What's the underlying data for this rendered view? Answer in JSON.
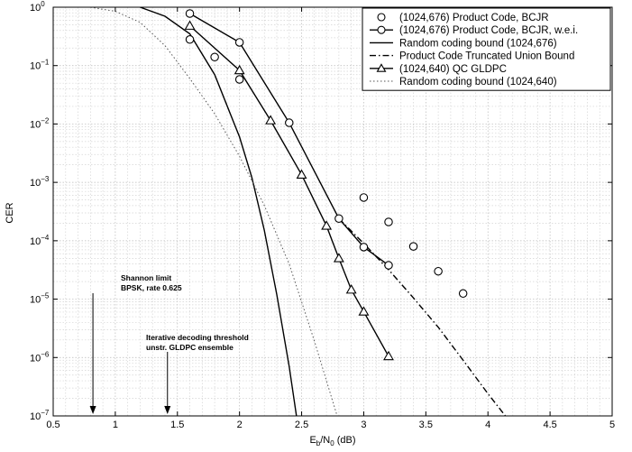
{
  "chart_data": {
    "type": "line",
    "xlabel": {
      "main": "E",
      "sub1": "b",
      "mid": "/N",
      "sub2": "0",
      "unit": " (dB)"
    },
    "ylabel": "CER",
    "xlim": [
      0.5,
      5
    ],
    "ylim_log10": [
      -7,
      0
    ],
    "yscale": "log",
    "grid": true,
    "legend_position": "top-right",
    "xticks": [
      {
        "v": 0.5,
        "label": "0.5"
      },
      {
        "v": 1,
        "label": "1"
      },
      {
        "v": 1.5,
        "label": "1.5"
      },
      {
        "v": 2,
        "label": "2"
      },
      {
        "v": 2.5,
        "label": "2.5"
      },
      {
        "v": 3,
        "label": "3"
      },
      {
        "v": 3.5,
        "label": "3.5"
      },
      {
        "v": 4,
        "label": "4"
      },
      {
        "v": 4.5,
        "label": "4.5"
      },
      {
        "v": 5,
        "label": "5"
      }
    ],
    "yticks": [
      {
        "e": 0,
        "base": "10",
        "exp": "0"
      },
      {
        "e": -1,
        "base": "10",
        "exp": "−1"
      },
      {
        "e": -2,
        "base": "10",
        "exp": "−2"
      },
      {
        "e": -3,
        "base": "10",
        "exp": "−3"
      },
      {
        "e": -4,
        "base": "10",
        "exp": "−4"
      },
      {
        "e": -5,
        "base": "10",
        "exp": "−5"
      },
      {
        "e": -6,
        "base": "10",
        "exp": "−6"
      },
      {
        "e": -7,
        "base": "10",
        "exp": "−7"
      }
    ],
    "series": [
      {
        "name": "(1024,676) Product Code, BCJR",
        "style": "circle-markers",
        "x": [
          1.6,
          1.8,
          2.0,
          3.0,
          3.2,
          3.4,
          3.6,
          3.8
        ],
        "y": [
          0.28,
          0.14,
          0.058,
          0.00055,
          0.00021,
          8e-05,
          3e-05,
          1.25e-05
        ]
      },
      {
        "name": "(1024,676) Product Code, BCJR, w.e.i.",
        "style": "solid-circle",
        "x": [
          1.6,
          2.0,
          2.4,
          2.8,
          3.0,
          3.2
        ],
        "y": [
          0.78,
          0.25,
          0.0105,
          0.00024,
          7.8e-05,
          3.8e-05
        ]
      },
      {
        "name": "Random coding bound (1024,676)",
        "style": "solid",
        "x": [
          1.2,
          1.4,
          1.6,
          1.8,
          2.0,
          2.1,
          2.2,
          2.3,
          2.4,
          2.5,
          2.6,
          2.62
        ],
        "y": [
          1.0,
          0.7,
          0.35,
          0.07,
          0.006,
          0.0012,
          0.00015,
          1.2e-05,
          7e-07,
          2.5e-08,
          1.3e-09,
          1e-07
        ]
      },
      {
        "name": "Product Code Truncated Union Bound",
        "style": "dashdot",
        "x": [
          2.8,
          3.0,
          3.2,
          3.4,
          3.6,
          3.8,
          4.0,
          4.14
        ],
        "y": [
          0.00024,
          9e-05,
          3.2e-05,
          1.05e-05,
          3.3e-06,
          9e-07,
          2.4e-07,
          1e-07
        ]
      },
      {
        "name": "(1024,640) QC GLDPC",
        "style": "solid-triangle",
        "x": [
          1.6,
          2.0,
          2.25,
          2.5,
          2.7,
          2.8,
          2.9,
          3.0,
          3.2
        ],
        "y": [
          0.48,
          0.083,
          0.0115,
          0.00135,
          0.00018,
          5e-05,
          1.45e-05,
          6.1e-06,
          1.05e-06
        ]
      },
      {
        "name": "Random coding bound (1024,640)",
        "style": "dotted",
        "x": [
          0.8,
          1.0,
          1.2,
          1.4,
          1.6,
          1.8,
          2.0,
          2.2,
          2.4,
          2.6,
          2.8,
          3.0,
          3.2
        ],
        "y": [
          1.0,
          0.85,
          0.55,
          0.22,
          0.06,
          0.015,
          0.0028,
          0.0004,
          4e-05,
          2e-06,
          8e-08,
          1e-07,
          1e-07
        ]
      }
    ],
    "annotations": [
      {
        "lines": [
          "Shannon limit",
          "BPSK, rate 0.625"
        ],
        "arrow_x": 0.82
      },
      {
        "lines": [
          "Iterative decoding threshold",
          "unstr. GLDPC ensemble"
        ],
        "arrow_x": 1.42
      }
    ]
  }
}
